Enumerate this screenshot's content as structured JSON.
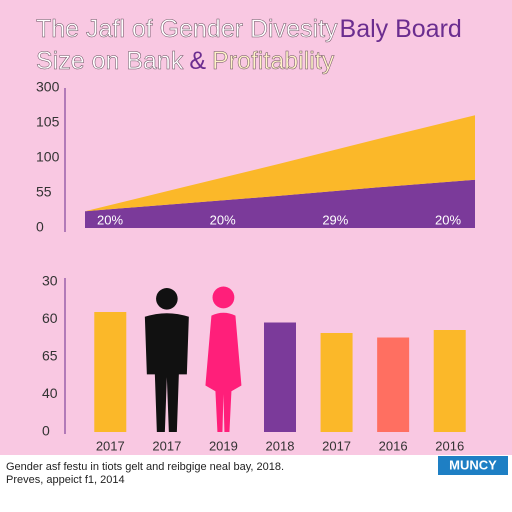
{
  "header": {
    "title_a": "The Jafl of Gender Divesity",
    "title_b": "Baly Board",
    "title_c": "Size on Bank",
    "title_d": "&",
    "title_e": "Profitability"
  },
  "chart_data": [
    {
      "type": "area",
      "stacked": true,
      "categories": [
        null,
        null,
        null,
        null,
        null
      ],
      "series": [
        {
          "color": "#7b3a9a",
          "values": [
            24,
            35,
            46,
            58,
            69
          ]
        },
        {
          "color": "#fbb829",
          "values": [
            0,
            23,
            46,
            69,
            92
          ]
        }
      ],
      "annotations": [
        "20%",
        "20%",
        "29%",
        "20%"
      ],
      "ylim": [
        0,
        200
      ],
      "yticks": [
        0,
        {
          "value": 50,
          "label": "55"
        },
        100,
        {
          "value": 150,
          "label": "105"
        },
        {
          "value": 200,
          "label": "300"
        }
      ]
    },
    {
      "type": "bar",
      "categories": [
        "2017",
        "2017",
        "2019",
        "2018",
        "2017",
        "2016",
        "2016"
      ],
      "values": [
        80,
        96,
        97,
        73,
        66,
        63,
        68
      ],
      "colors": [
        "#fbb829",
        "#111111",
        "#ff1f7a",
        "#7b3a9a",
        "#fbb829",
        "#ff6f61",
        "#fbb829"
      ],
      "shapes": [
        "bar",
        "man",
        "woman",
        "bar",
        "bar",
        "bar",
        "bar"
      ],
      "ylim": [
        0,
        100
      ],
      "yticks": [
        0,
        {
          "value": 25,
          "label": "40"
        },
        {
          "value": 50,
          "label": "65"
        },
        {
          "value": 75,
          "label": "60"
        },
        {
          "value": 100,
          "label": "30"
        }
      ]
    }
  ],
  "footer": {
    "line1": "Gender asf festu in tiots gelt and reibgige neal bay, 2018.",
    "line2": "Preves, appeict f1, 2014",
    "logo": "MUNCY"
  }
}
